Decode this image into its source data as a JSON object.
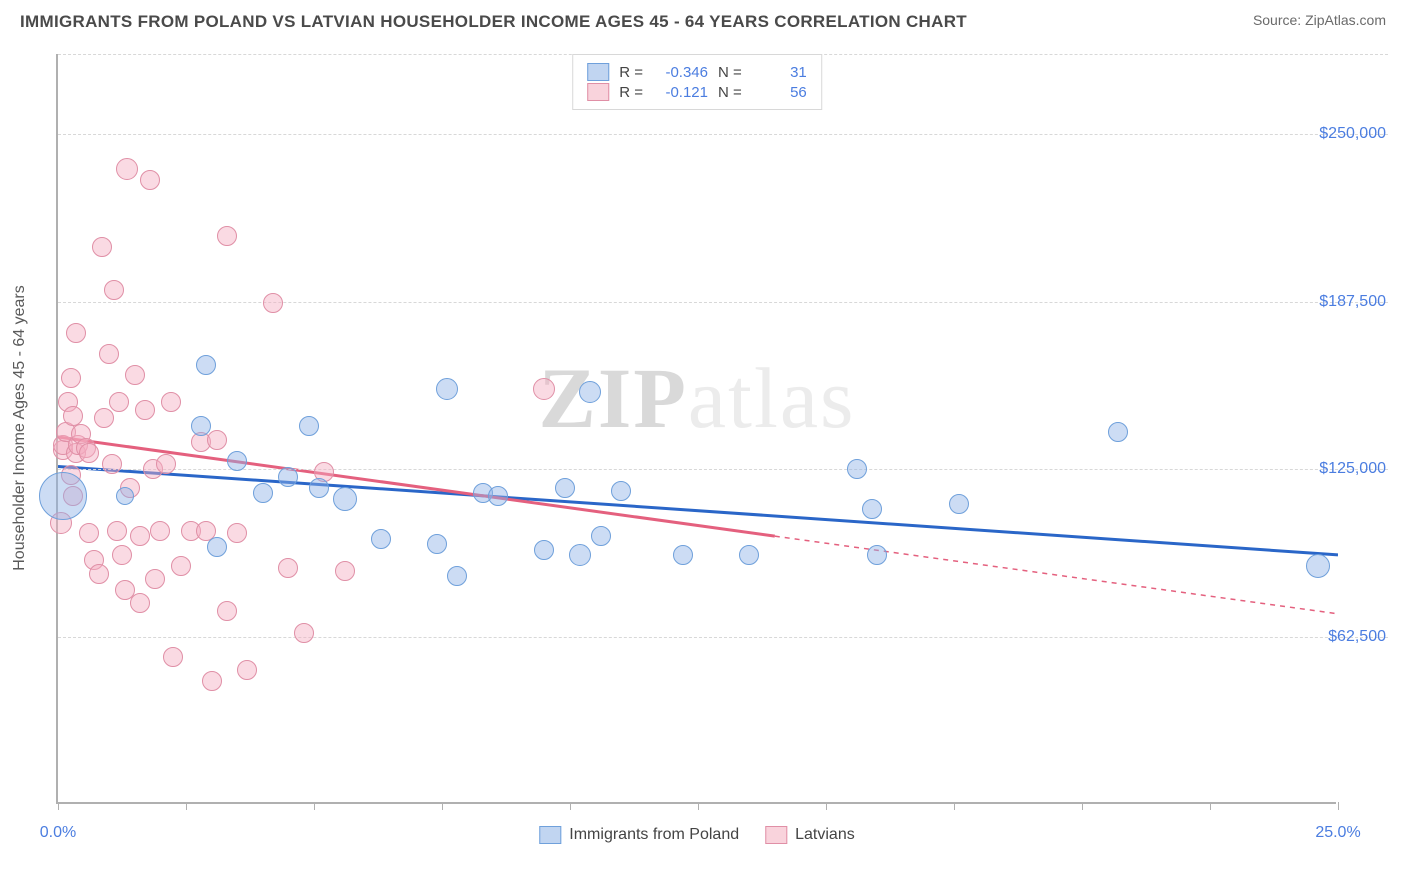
{
  "header": {
    "title": "IMMIGRANTS FROM POLAND VS LATVIAN HOUSEHOLDER INCOME AGES 45 - 64 YEARS CORRELATION CHART",
    "source": "Source: ZipAtlas.com"
  },
  "chart": {
    "type": "scatter-correlation",
    "y_axis_label": "Householder Income Ages 45 - 64 years",
    "xlim_pct": [
      0,
      25
    ],
    "ylim_dollars": [
      0,
      280000
    ],
    "y_grid_lines": [
      62500,
      125000,
      187500,
      250000
    ],
    "y_tick_labels": [
      "$62,500",
      "$125,000",
      "$187,500",
      "$250,000"
    ],
    "x_ticks_pct": [
      0,
      2.5,
      5,
      7.5,
      10,
      12.5,
      15,
      17.5,
      20,
      22.5,
      25
    ],
    "x_start_label": "0.0%",
    "x_end_label": "25.0%",
    "watermark": {
      "zip": "ZIP",
      "atlas": "atlas"
    },
    "background_color": "#ffffff",
    "grid_color": "#d8d8d8",
    "axis_color": "#b0b0b0",
    "series": {
      "blue": {
        "name": "Immigrants from Poland",
        "fill": "rgba(142,178,230,0.45)",
        "stroke": "#6fa0db",
        "trend_color": "#2a66c8",
        "R_label": "R =",
        "R_value": "-0.346",
        "N_label": "N =",
        "N_value": "31",
        "trend": {
          "x1_pct": 0,
          "y1": 126000,
          "x2_pct": 25,
          "y2": 93000
        },
        "points": [
          {
            "x": 0.1,
            "y": 115000,
            "r": 24
          },
          {
            "x": 1.3,
            "y": 115000,
            "r": 9
          },
          {
            "x": 2.8,
            "y": 141000,
            "r": 10
          },
          {
            "x": 3.5,
            "y": 128000,
            "r": 10
          },
          {
            "x": 3.1,
            "y": 96000,
            "r": 10
          },
          {
            "x": 4.0,
            "y": 116000,
            "r": 10
          },
          {
            "x": 4.5,
            "y": 122000,
            "r": 10
          },
          {
            "x": 4.9,
            "y": 141000,
            "r": 10
          },
          {
            "x": 5.1,
            "y": 118000,
            "r": 10
          },
          {
            "x": 5.6,
            "y": 114000,
            "r": 12
          },
          {
            "x": 6.3,
            "y": 99000,
            "r": 10
          },
          {
            "x": 7.4,
            "y": 97000,
            "r": 10
          },
          {
            "x": 7.6,
            "y": 155000,
            "r": 11
          },
          {
            "x": 7.8,
            "y": 85000,
            "r": 10
          },
          {
            "x": 8.3,
            "y": 116000,
            "r": 10
          },
          {
            "x": 8.6,
            "y": 115000,
            "r": 10
          },
          {
            "x": 9.5,
            "y": 95000,
            "r": 10
          },
          {
            "x": 9.9,
            "y": 118000,
            "r": 10
          },
          {
            "x": 10.2,
            "y": 93000,
            "r": 11
          },
          {
            "x": 10.4,
            "y": 154000,
            "r": 11
          },
          {
            "x": 10.6,
            "y": 100000,
            "r": 10
          },
          {
            "x": 11.0,
            "y": 117000,
            "r": 10
          },
          {
            "x": 12.2,
            "y": 93000,
            "r": 10
          },
          {
            "x": 13.5,
            "y": 93000,
            "r": 10
          },
          {
            "x": 15.6,
            "y": 125000,
            "r": 10
          },
          {
            "x": 15.9,
            "y": 110000,
            "r": 10
          },
          {
            "x": 16.0,
            "y": 93000,
            "r": 10
          },
          {
            "x": 17.6,
            "y": 112000,
            "r": 10
          },
          {
            "x": 20.7,
            "y": 139000,
            "r": 10
          },
          {
            "x": 24.6,
            "y": 89000,
            "r": 12
          },
          {
            "x": 2.9,
            "y": 164000,
            "r": 10
          }
        ]
      },
      "pink": {
        "name": "Latvians",
        "fill": "rgba(244,174,192,0.45)",
        "stroke": "#e08fa6",
        "trend_color": "#e4607e",
        "R_label": "R =",
        "R_value": "-0.121",
        "N_label": "N =",
        "N_value": "56",
        "trend_solid": {
          "x1_pct": 0,
          "y1": 137000,
          "x2_pct": 14,
          "y2": 100000
        },
        "trend_dash": {
          "x1_pct": 14,
          "y1": 100000,
          "x2_pct": 25,
          "y2": 71000
        },
        "points": [
          {
            "x": 0.05,
            "y": 105000,
            "r": 11
          },
          {
            "x": 0.1,
            "y": 132000,
            "r": 10
          },
          {
            "x": 0.1,
            "y": 134000,
            "r": 10
          },
          {
            "x": 0.15,
            "y": 139000,
            "r": 10
          },
          {
            "x": 0.2,
            "y": 150000,
            "r": 10
          },
          {
            "x": 0.25,
            "y": 123000,
            "r": 10
          },
          {
            "x": 0.25,
            "y": 159000,
            "r": 10
          },
          {
            "x": 0.3,
            "y": 145000,
            "r": 10
          },
          {
            "x": 0.3,
            "y": 115000,
            "r": 10
          },
          {
            "x": 0.35,
            "y": 131000,
            "r": 10
          },
          {
            "x": 0.35,
            "y": 176000,
            "r": 10
          },
          {
            "x": 0.4,
            "y": 134000,
            "r": 10
          },
          {
            "x": 0.45,
            "y": 138000,
            "r": 10
          },
          {
            "x": 0.55,
            "y": 133000,
            "r": 10
          },
          {
            "x": 0.6,
            "y": 131000,
            "r": 10
          },
          {
            "x": 0.6,
            "y": 101000,
            "r": 10
          },
          {
            "x": 0.7,
            "y": 91000,
            "r": 10
          },
          {
            "x": 0.8,
            "y": 86000,
            "r": 10
          },
          {
            "x": 0.85,
            "y": 208000,
            "r": 10
          },
          {
            "x": 0.9,
            "y": 144000,
            "r": 10
          },
          {
            "x": 1.0,
            "y": 168000,
            "r": 10
          },
          {
            "x": 1.05,
            "y": 127000,
            "r": 10
          },
          {
            "x": 1.1,
            "y": 192000,
            "r": 10
          },
          {
            "x": 1.15,
            "y": 102000,
            "r": 10
          },
          {
            "x": 1.2,
            "y": 150000,
            "r": 10
          },
          {
            "x": 1.25,
            "y": 93000,
            "r": 10
          },
          {
            "x": 1.3,
            "y": 80000,
            "r": 10
          },
          {
            "x": 1.35,
            "y": 237000,
            "r": 11
          },
          {
            "x": 1.4,
            "y": 118000,
            "r": 10
          },
          {
            "x": 1.5,
            "y": 160000,
            "r": 10
          },
          {
            "x": 1.6,
            "y": 100000,
            "r": 10
          },
          {
            "x": 1.6,
            "y": 75000,
            "r": 10
          },
          {
            "x": 1.7,
            "y": 147000,
            "r": 10
          },
          {
            "x": 1.8,
            "y": 233000,
            "r": 10
          },
          {
            "x": 1.85,
            "y": 125000,
            "r": 10
          },
          {
            "x": 1.9,
            "y": 84000,
            "r": 10
          },
          {
            "x": 2.0,
            "y": 102000,
            "r": 10
          },
          {
            "x": 2.1,
            "y": 127000,
            "r": 10
          },
          {
            "x": 2.2,
            "y": 150000,
            "r": 10
          },
          {
            "x": 2.25,
            "y": 55000,
            "r": 10
          },
          {
            "x": 2.4,
            "y": 89000,
            "r": 10
          },
          {
            "x": 2.6,
            "y": 102000,
            "r": 10
          },
          {
            "x": 2.8,
            "y": 135000,
            "r": 10
          },
          {
            "x": 2.9,
            "y": 102000,
            "r": 10
          },
          {
            "x": 3.0,
            "y": 46000,
            "r": 10
          },
          {
            "x": 3.1,
            "y": 136000,
            "r": 10
          },
          {
            "x": 3.3,
            "y": 212000,
            "r": 10
          },
          {
            "x": 3.3,
            "y": 72000,
            "r": 10
          },
          {
            "x": 3.5,
            "y": 101000,
            "r": 10
          },
          {
            "x": 3.7,
            "y": 50000,
            "r": 10
          },
          {
            "x": 4.2,
            "y": 187000,
            "r": 10
          },
          {
            "x": 4.5,
            "y": 88000,
            "r": 10
          },
          {
            "x": 4.8,
            "y": 64000,
            "r": 10
          },
          {
            "x": 5.2,
            "y": 124000,
            "r": 10
          },
          {
            "x": 5.6,
            "y": 87000,
            "r": 10
          },
          {
            "x": 9.5,
            "y": 155000,
            "r": 11
          }
        ]
      }
    }
  }
}
